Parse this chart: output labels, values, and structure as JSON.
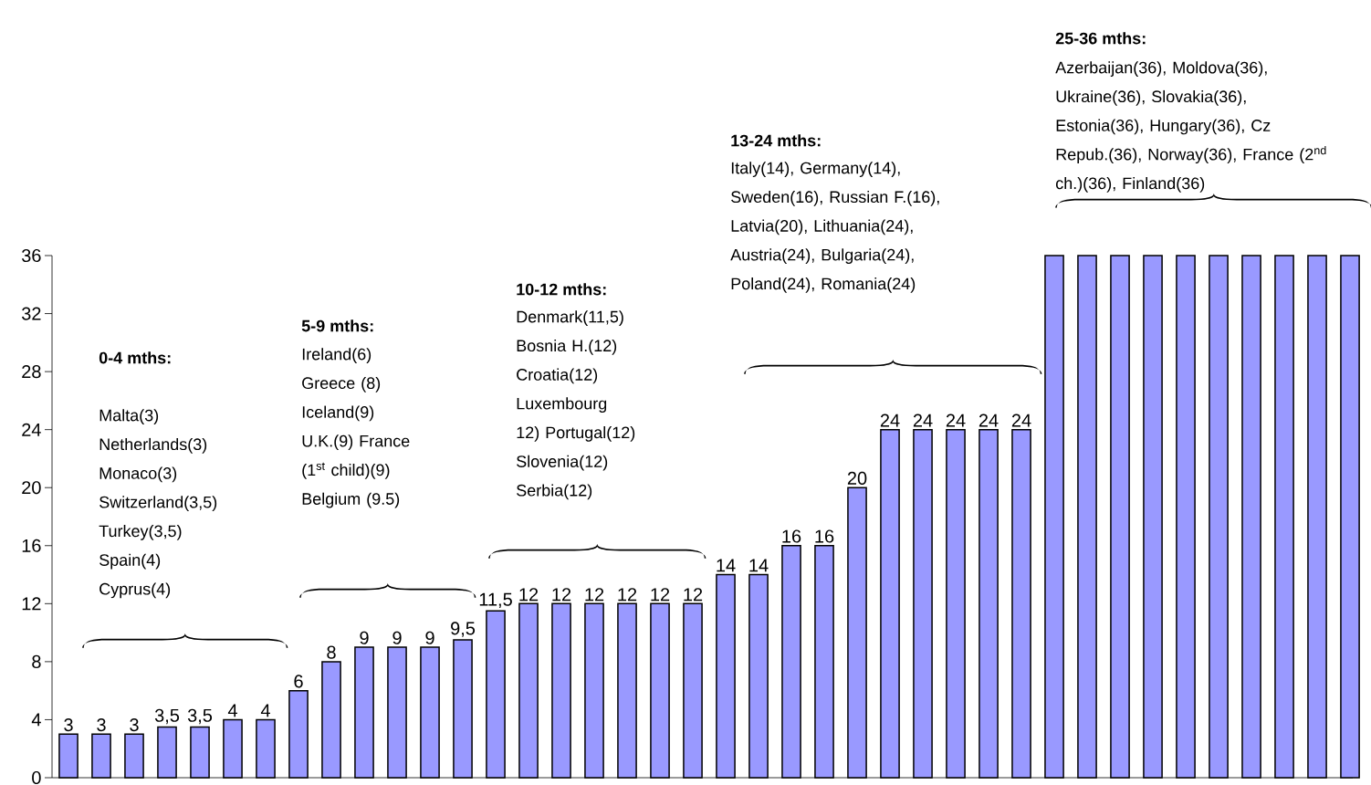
{
  "chart_data": {
    "type": "bar",
    "categories": [
      null,
      null,
      null,
      null,
      null,
      null,
      null,
      null,
      null,
      null,
      null,
      null,
      null,
      null,
      null,
      null,
      null,
      null,
      null,
      null,
      null,
      null,
      null,
      null,
      null,
      null,
      null,
      null,
      null,
      null,
      null,
      null,
      null,
      null,
      null,
      null,
      null,
      null,
      null,
      null
    ],
    "values": [
      3,
      3,
      3,
      3.5,
      3.5,
      4,
      4,
      6,
      8,
      9,
      9,
      9,
      9.5,
      11.5,
      12,
      12,
      12,
      12,
      12,
      12,
      14,
      14,
      16,
      16,
      20,
      24,
      24,
      24,
      24,
      24,
      36,
      36,
      36,
      36,
      36,
      36,
      36,
      36,
      36,
      36
    ],
    "value_labels": [
      "3",
      "3",
      "3",
      "3,5",
      "3,5",
      "4",
      "4",
      "6",
      "8",
      "9",
      "9",
      "9",
      "9,5",
      "11,5",
      "12",
      "12",
      "12",
      "12",
      "12",
      "12",
      "14",
      "14",
      "16",
      "16",
      "20",
      "24",
      "24",
      "24",
      "24",
      "24",
      null,
      null,
      null,
      null,
      null,
      null,
      null,
      null,
      null,
      null
    ],
    "color": "#9999ff",
    "ylim": [
      0,
      36
    ],
    "yticks": [
      0,
      4,
      8,
      12,
      16,
      20,
      24,
      28,
      32,
      36
    ],
    "grid": false,
    "annotations": [
      "0-4 mths:",
      "Malta(3) Netherlands(3) Monaco(3) Switzerland(3,5) Turkey(3,5) Spain(4) Cyprus(4)",
      "5-9 mths:",
      "Ireland(6) Greece (8) Iceland(9) U.K.(9) France (1$^{st}$ child)(9) Belgium (9.5)",
      "10-12 mths:",
      "Denmark(11,5) Bosnia H.(12) Croatia(12) Luxembourg 12) Portugal(12) Slovenia(12) Serbia(12)",
      "13-24 mths:",
      "Italy(14), Germany(14), Sweden(16), Russian F.(16), Latvia(20), Lithuania(24), Austria(24), Bulgaria(24), Poland(24), Romania(24)",
      "25-36 mths:",
      "Azerbaijan(36), Moldova(36), Ukraine(36), Slovakia(36), Estonia(36), Hungary(36), Cz Repub.(36), Norway(36), France (2$^{nd}$ ch.)(36), Finland(36)"
    ]
  }
}
